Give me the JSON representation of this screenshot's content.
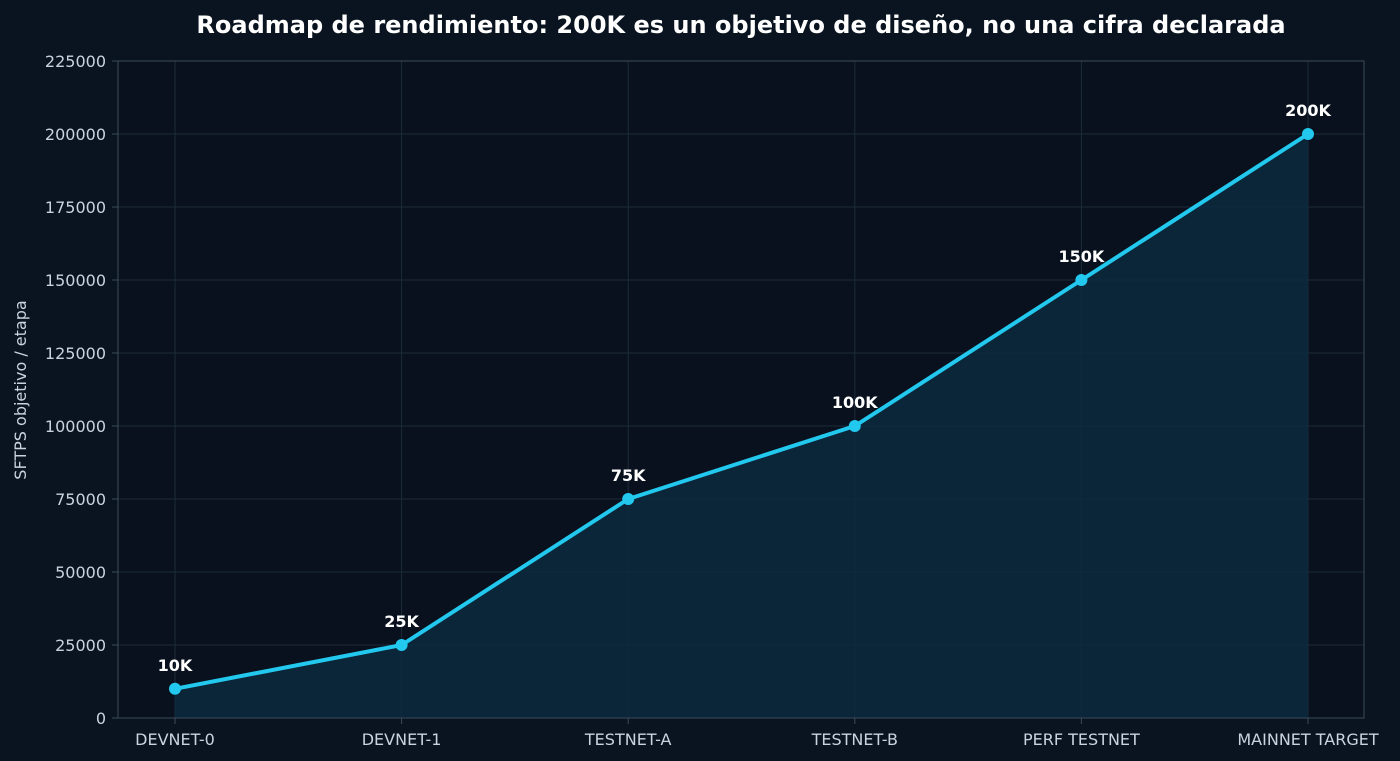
{
  "chart_data": {
    "type": "area",
    "title": "Roadmap de rendimiento: 200K es un objetivo de diseño, no una cifra declarada",
    "xlabel": "",
    "ylabel": "SFTPS objetivo / etapa",
    "categories": [
      "DEVNET-0",
      "DEVNET-1",
      "TESTNET-A",
      "TESTNET-B",
      "PERF TESTNET",
      "MAINNET TARGET"
    ],
    "series": [
      {
        "values": [
          10000,
          25000,
          75000,
          100000,
          150000,
          200000
        ]
      }
    ],
    "data_labels": [
      "10K",
      "25K",
      "75K",
      "100K",
      "150K",
      "200K"
    ],
    "ylim": [
      0,
      225000
    ],
    "yticks": [
      0,
      25000,
      50000,
      75000,
      100000,
      125000,
      150000,
      175000,
      200000,
      225000
    ],
    "grid": true,
    "legend": "none",
    "colors": {
      "background": "#0a1420",
      "plot_background": "#08111d",
      "line": "#22c8ee",
      "fill": "#0c2a3e",
      "grid": "#1c2c3c",
      "axis": "#3b4c5c",
      "text": "#c9d4de",
      "title": "#ffffff"
    }
  }
}
